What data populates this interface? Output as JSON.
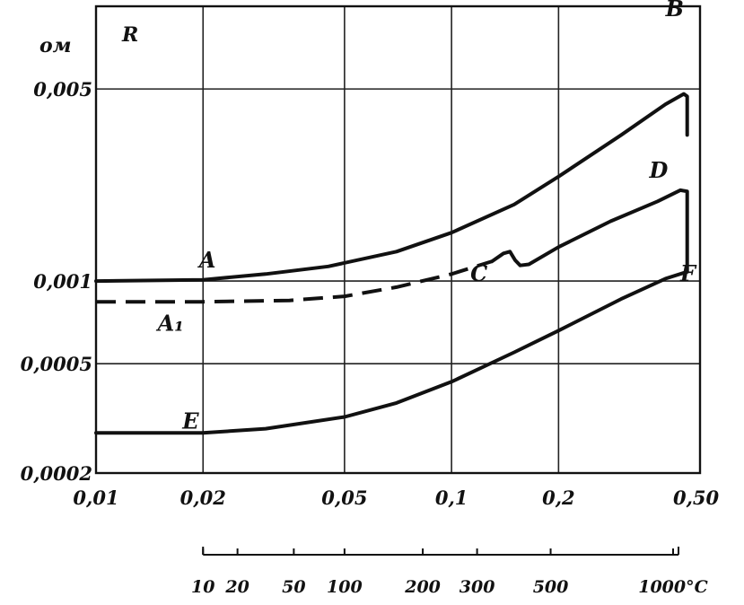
{
  "chart_data": {
    "type": "line",
    "x_scale": "log",
    "y_scale": "log",
    "xlim": [
      0.01,
      0.5
    ],
    "ylim": [
      0.0002,
      0.01
    ],
    "grid": true,
    "y_axis_label": "R",
    "y_unit_label": "ом",
    "y_ticks": [
      {
        "value": 0.005,
        "label": "0,005"
      },
      {
        "value": 0.001,
        "label": "0,001"
      },
      {
        "value": 0.0005,
        "label": "0,0005"
      },
      {
        "value": 0.0002,
        "label": "0,0002"
      }
    ],
    "x_ticks": [
      {
        "value": 0.01,
        "label": "0,01"
      },
      {
        "value": 0.02,
        "label": "0,02"
      },
      {
        "value": 0.05,
        "label": "0,05"
      },
      {
        "value": 0.1,
        "label": "0,1"
      },
      {
        "value": 0.2,
        "label": "0,2"
      },
      {
        "value": 0.5,
        "label": "0,50"
      }
    ],
    "temperature_scale": {
      "unit": "°C",
      "ticks": [
        {
          "x": 0.02,
          "label": "10"
        },
        {
          "x": 0.025,
          "label": "20"
        },
        {
          "x": 0.036,
          "label": "50"
        },
        {
          "x": 0.05,
          "label": "100"
        },
        {
          "x": 0.083,
          "label": "200"
        },
        {
          "x": 0.118,
          "label": "300"
        },
        {
          "x": 0.19,
          "label": "500"
        },
        {
          "x": 0.42,
          "label": "1000"
        }
      ],
      "last_label": "1000°C"
    },
    "series": [
      {
        "style": "solid",
        "points": [
          [
            0.01,
            0.001
          ],
          [
            0.02,
            0.00101
          ],
          [
            0.03,
            0.00106
          ],
          [
            0.045,
            0.00113
          ],
          [
            0.07,
            0.00128
          ],
          [
            0.1,
            0.0015
          ],
          [
            0.15,
            0.0019
          ],
          [
            0.2,
            0.0024
          ],
          [
            0.3,
            0.0034
          ],
          [
            0.4,
            0.0044
          ],
          [
            0.45,
            0.0048
          ],
          [
            0.46,
            0.0047
          ],
          [
            0.46,
            0.0034
          ]
        ]
      },
      {
        "style": "dashed",
        "points": [
          [
            0.01,
            0.00084
          ],
          [
            0.02,
            0.00084
          ],
          [
            0.035,
            0.00085
          ],
          [
            0.05,
            0.00088
          ],
          [
            0.07,
            0.00095
          ],
          [
            0.1,
            0.00106
          ],
          [
            0.13,
            0.00118
          ]
        ]
      },
      {
        "style": "solid",
        "points": [
          [
            0.13,
            0.00118
          ],
          [
            0.14,
            0.00126
          ],
          [
            0.146,
            0.00128
          ],
          [
            0.151,
            0.00119
          ],
          [
            0.156,
            0.00114
          ],
          [
            0.165,
            0.00115
          ],
          [
            0.2,
            0.00133
          ],
          [
            0.28,
            0.00165
          ],
          [
            0.38,
            0.00195
          ],
          [
            0.44,
            0.00214
          ],
          [
            0.46,
            0.00212
          ],
          [
            0.46,
            0.00108
          ]
        ]
      },
      {
        "style": "solid",
        "points": [
          [
            0.01,
            0.00028
          ],
          [
            0.02,
            0.00028
          ],
          [
            0.03,
            0.00029
          ],
          [
            0.05,
            0.00032
          ],
          [
            0.07,
            0.00036
          ],
          [
            0.1,
            0.00043
          ],
          [
            0.15,
            0.00055
          ],
          [
            0.2,
            0.00066
          ],
          [
            0.3,
            0.00086
          ],
          [
            0.4,
            0.00102
          ],
          [
            0.46,
            0.00108
          ]
        ]
      }
    ],
    "annotations": [
      {
        "text": "A",
        "x": 0.0195,
        "y": 0.00112
      },
      {
        "text": "A₁",
        "x": 0.0149,
        "y": 0.00066
      },
      {
        "text": "B",
        "x": 0.4,
        "y": 0.0092
      },
      {
        "text": "C",
        "x": 0.113,
        "y": 0.001
      },
      {
        "text": "D",
        "x": 0.36,
        "y": 0.00238
      },
      {
        "text": "E",
        "x": 0.0175,
        "y": 0.00029
      },
      {
        "text": "F",
        "x": 0.44,
        "y": 0.001
      }
    ]
  }
}
